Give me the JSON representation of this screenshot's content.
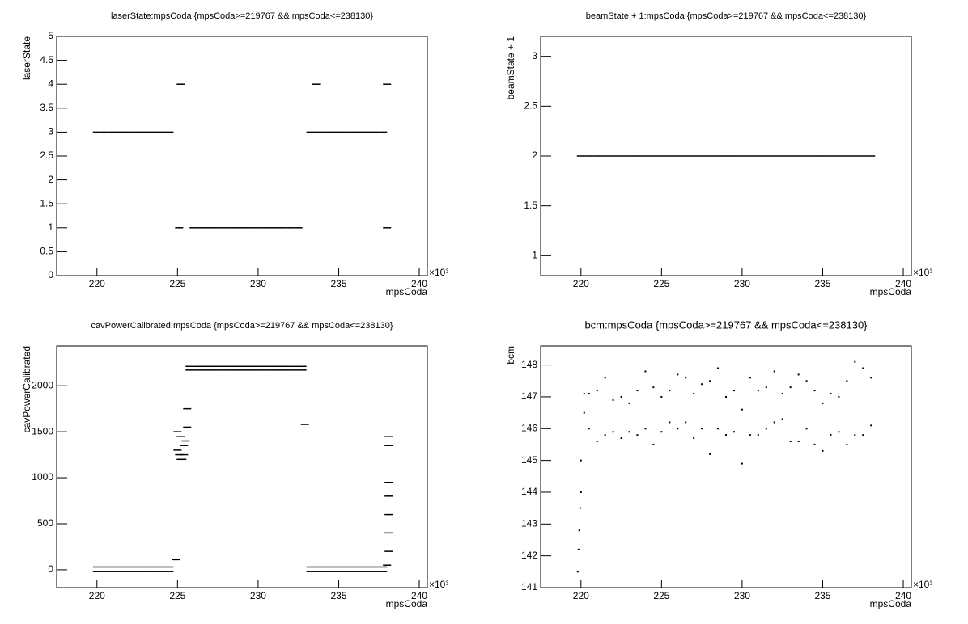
{
  "chart_data": [
    {
      "type": "scatter",
      "title": "laserState:mpsCoda {mpsCoda>=219767 && mpsCoda<=238130}",
      "x_label": "mpsCoda",
      "y_label": "laserState",
      "x_exponent": "×10³",
      "marker": "dash",
      "color": "#000000",
      "xlim": [
        217.5,
        240.5
      ],
      "xticks": [
        220,
        225,
        230,
        235,
        240
      ],
      "ylim": [
        0,
        5
      ],
      "yticks": [
        0,
        0.5,
        1,
        1.5,
        2,
        2.5,
        3,
        3.5,
        4,
        4.5,
        5
      ],
      "x": [
        220.0,
        220.5,
        221.0,
        221.5,
        222.0,
        222.5,
        223.0,
        223.5,
        224.0,
        224.5,
        225.2,
        225.1,
        226.0,
        226.5,
        227.0,
        227.5,
        228.0,
        228.5,
        229.0,
        229.5,
        230.0,
        230.5,
        231.0,
        231.5,
        232.0,
        232.5,
        233.25,
        233.75,
        234.25,
        234.75,
        235.25,
        235.75,
        236.25,
        236.75,
        237.25,
        237.75,
        233.6,
        238.0,
        238.0
      ],
      "values": [
        3,
        3,
        3,
        3,
        3,
        3,
        3,
        3,
        3,
        3,
        4,
        1,
        1,
        1,
        1,
        1,
        1,
        1,
        1,
        1,
        1,
        1,
        1,
        1,
        1,
        1,
        3,
        3,
        3,
        3,
        3,
        3,
        3,
        3,
        3,
        3,
        4,
        4,
        1
      ]
    },
    {
      "type": "scatter",
      "title": "beamState + 1:mpsCoda {mpsCoda>=219767 && mpsCoda<=238130}",
      "x_label": "mpsCoda",
      "y_label": "beamState + 1",
      "x_exponent": "×10³",
      "marker": "dash",
      "color": "#000000",
      "xlim": [
        217.5,
        240.5
      ],
      "xticks": [
        220,
        225,
        230,
        235,
        240
      ],
      "ylim": [
        0.8,
        3.2
      ],
      "yticks": [
        1,
        1.5,
        2,
        2.5,
        3
      ],
      "x": [
        220.0,
        220.5,
        221.0,
        221.5,
        222.0,
        222.5,
        223.0,
        223.5,
        224.0,
        224.5,
        225.0,
        225.5,
        226.0,
        226.5,
        227.0,
        227.5,
        228.0,
        228.5,
        229.0,
        229.5,
        230.0,
        230.5,
        231.0,
        231.5,
        232.0,
        232.5,
        233.0,
        233.5,
        234.0,
        234.5,
        235.0,
        235.5,
        236.0,
        236.5,
        237.0,
        237.5,
        238.0
      ],
      "values": [
        2,
        2,
        2,
        2,
        2,
        2,
        2,
        2,
        2,
        2,
        2,
        2,
        2,
        2,
        2,
        2,
        2,
        2,
        2,
        2,
        2,
        2,
        2,
        2,
        2,
        2,
        2,
        2,
        2,
        2,
        2,
        2,
        2,
        2,
        2,
        2,
        2
      ]
    },
    {
      "type": "scatter",
      "title": "cavPowerCalibrated:mpsCoda {mpsCoda>=219767 && mpsCoda<=238130}",
      "x_label": "mpsCoda",
      "y_label": "cavPowerCalibrated",
      "x_exponent": "×10³",
      "marker": "dash",
      "color": "#000000",
      "xlim": [
        217.5,
        240.5
      ],
      "xticks": [
        220,
        225,
        230,
        235,
        240
      ],
      "ylim": [
        -194,
        2432
      ],
      "yticks": [
        0,
        500,
        1000,
        1500,
        2000
      ],
      "x": [
        220.0,
        220.5,
        221.0,
        221.5,
        222.0,
        222.5,
        223.0,
        223.5,
        224.0,
        224.5,
        220.0,
        220.5,
        221.0,
        221.5,
        222.0,
        222.5,
        223.0,
        223.5,
        224.0,
        224.5,
        225.75,
        226.25,
        226.75,
        227.25,
        227.75,
        228.25,
        228.75,
        229.25,
        229.75,
        230.25,
        230.75,
        231.25,
        231.75,
        232.25,
        232.75,
        225.75,
        226.25,
        226.75,
        227.25,
        227.75,
        228.25,
        228.75,
        229.25,
        229.75,
        230.25,
        230.75,
        231.25,
        231.75,
        232.25,
        232.75,
        233.25,
        233.75,
        234.25,
        234.75,
        235.25,
        235.75,
        236.25,
        236.75,
        237.25,
        237.75,
        233.25,
        233.75,
        234.25,
        234.75,
        235.25,
        235.75,
        236.25,
        236.75,
        237.25,
        237.75,
        225.0,
        225.0,
        225.1,
        225.2,
        225.3,
        225.4,
        225.5,
        225.6,
        225.2,
        225.4,
        225.6,
        224.9,
        232.9,
        238.0,
        238.1,
        238.1,
        238.1,
        238.1,
        238.1,
        238.1,
        238.1
      ],
      "values": [
        30,
        30,
        30,
        30,
        30,
        30,
        30,
        30,
        30,
        30,
        -20,
        -20,
        -20,
        -20,
        -20,
        -20,
        -20,
        -20,
        -20,
        -20,
        2210,
        2210,
        2210,
        2210,
        2210,
        2210,
        2210,
        2210,
        2210,
        2210,
        2210,
        2210,
        2210,
        2210,
        2210,
        2170,
        2170,
        2170,
        2170,
        2170,
        2170,
        2170,
        2170,
        2170,
        2170,
        2170,
        2170,
        2170,
        2170,
        2170,
        30,
        30,
        30,
        30,
        30,
        30,
        30,
        30,
        30,
        30,
        -20,
        -20,
        -20,
        -20,
        -20,
        -20,
        -20,
        -20,
        -20,
        -20,
        1300,
        1500,
        1250,
        1200,
        1200,
        1250,
        1400,
        1550,
        1450,
        1350,
        1750,
        110,
        1580,
        50,
        200,
        400,
        600,
        800,
        950,
        1350,
        1450
      ]
    },
    {
      "type": "scatter",
      "title": "bcm:mpsCoda {mpsCoda>=219767 && mpsCoda<=238130}",
      "x_label": "mpsCoda",
      "y_label": "bcm",
      "x_exponent": "×10³",
      "marker": "dot",
      "color": "#000000",
      "xlim": [
        217.5,
        240.5
      ],
      "xticks": [
        220,
        225,
        230,
        235,
        240
      ],
      "ylim": [
        141,
        148.6
      ],
      "yticks": [
        141,
        142,
        143,
        144,
        145,
        146,
        147,
        148
      ],
      "x": [
        219.8,
        219.85,
        219.9,
        219.95,
        220.0,
        220.0,
        220.2,
        220.2,
        220.5,
        220.5,
        221.0,
        221.0,
        221.5,
        221.5,
        222.0,
        222.0,
        222.5,
        222.5,
        223.0,
        223.0,
        223.5,
        223.5,
        224.0,
        224.0,
        224.5,
        224.5,
        225.0,
        225.0,
        225.5,
        225.5,
        226.0,
        226.0,
        226.5,
        226.5,
        227.0,
        227.0,
        227.5,
        227.5,
        228.0,
        228.0,
        228.5,
        228.5,
        229.0,
        229.0,
        229.5,
        229.5,
        230.0,
        230.0,
        230.5,
        230.5,
        231.0,
        231.0,
        231.5,
        231.5,
        232.0,
        232.0,
        232.5,
        232.5,
        233.0,
        233.0,
        233.5,
        233.5,
        234.0,
        234.0,
        234.5,
        234.5,
        235.0,
        235.0,
        235.5,
        235.5,
        236.0,
        236.0,
        236.5,
        236.5,
        237.0,
        237.0,
        237.5,
        237.5,
        238.0,
        238.0
      ],
      "values": [
        141.5,
        142.2,
        142.8,
        143.5,
        144.0,
        145.0,
        146.5,
        147.1,
        146.0,
        147.1,
        145.6,
        147.2,
        145.8,
        147.6,
        145.9,
        146.9,
        145.7,
        147.0,
        145.9,
        146.8,
        145.8,
        147.2,
        146.0,
        147.8,
        145.5,
        147.3,
        145.9,
        147.0,
        146.2,
        147.2,
        146.0,
        147.7,
        146.2,
        147.6,
        145.7,
        147.1,
        146.0,
        147.4,
        145.2,
        147.5,
        146.0,
        147.9,
        145.8,
        147.0,
        145.9,
        147.2,
        144.9,
        146.6,
        145.8,
        147.6,
        145.8,
        147.2,
        146.0,
        147.3,
        146.2,
        147.8,
        146.3,
        147.1,
        145.6,
        147.3,
        145.6,
        147.7,
        146.0,
        147.5,
        145.5,
        147.2,
        145.3,
        146.8,
        145.8,
        147.1,
        145.9,
        147.0,
        145.5,
        147.5,
        145.8,
        148.1,
        145.8,
        147.9,
        146.1,
        147.6
      ]
    }
  ]
}
